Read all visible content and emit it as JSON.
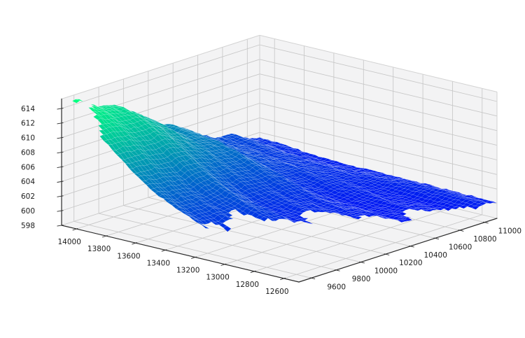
{
  "figure": {
    "background": "#ffffff",
    "description": "3D surface plot of terrain-like data, no title, no legend"
  },
  "axes": {
    "x": {
      "ticks": [
        14000,
        13800,
        13600,
        13400,
        13200,
        13000,
        12800,
        12600
      ],
      "range": [
        14100,
        12500
      ]
    },
    "y": {
      "ticks": [
        9600,
        9800,
        10000,
        10200,
        10400,
        10600,
        10800,
        11000
      ],
      "range": [
        9500,
        11100
      ]
    },
    "z": {
      "ticks": [
        598,
        600,
        602,
        604,
        606,
        608,
        610,
        612,
        614
      ],
      "range": [
        598,
        615.3
      ]
    }
  },
  "colors": {
    "pane": "#f3f3f4",
    "gridline": "#c7c7c7",
    "spine": "#2b2b2b",
    "label": "#1c1c1c",
    "mesh_edge": "rgba(255,255,255,0.30)"
  },
  "chart_data": {
    "type": "3d-surface",
    "title": "",
    "xlabel": "",
    "ylabel": "",
    "zlabel": "",
    "grid": true,
    "legend": false,
    "colormap": {
      "name": "winter",
      "low_color": "#0000ff",
      "high_color": "#00ff80",
      "vmin": 598.6,
      "vmax": 614.4
    },
    "x_range": [
      14100,
      12500
    ],
    "y_range": [
      9500,
      11100
    ],
    "z_range": [
      598,
      615.3
    ],
    "z_grid_approx_note": "Approx surface heights z(x,y); rows = x from 14100 to 12500, cols = y from 9500 to 11100 (5x5 sample); null = missing data (masked region, visible floor)",
    "z_grid_approx": [
      [
        614.2,
        612.1,
        607.8,
        603.8,
        601.3
      ],
      [
        609.0,
        608.0,
        605.3,
        602.6,
        600.9
      ],
      [
        603.1,
        603.1,
        602.2,
        601.1,
        600.5
      ],
      [
        null,
        null,
        600.5,
        600.2,
        600.5
      ],
      [
        null,
        null,
        null,
        null,
        600.1
      ]
    ],
    "surface_model": {
      "grid_n": 57,
      "base": 599.75,
      "amp": 14.45,
      "v_shift": 0.02,
      "v_scale": 0.68,
      "v_exp": 2.0,
      "wu0": 0.4,
      "wu_slope": 0.1,
      "u_exp": 1.7,
      "ripple_damp": {
        "c": 0.35,
        "a": 0.65,
        "r0": 0.55,
        "w": 0.35
      },
      "ripples": [
        [
          0.34,
          2.1,
          23,
          0.7
        ],
        [
          0.27,
          11.5,
          -7,
          2.0
        ],
        [
          0.2,
          -3,
          41,
          4.0
        ],
        [
          0.12,
          13,
          97,
          0.0
        ]
      ],
      "jitter": 0.11,
      "tail_bump": {
        "u": 0.8,
        "v": 0.94,
        "amp": 1.05,
        "wu": 0.28,
        "wv": 0.07
      },
      "peak_spike": {
        "amp": 0.45,
        "u_w": 0.05,
        "v_c": 0.072,
        "v_w": 0.03
      },
      "mask": {
        "u_base": 0.55,
        "u_slope": 0.5,
        "u_pow": 1.15,
        "edge_wiggles": [
          [
            0.045,
            21,
            1.0
          ],
          [
            0.028,
            47,
            2.2
          ],
          [
            0.02,
            11,
            0.0
          ],
          [
            0.015,
            83,
            0.5
          ]
        ],
        "front_v0": 0.15,
        "front_slope": 1.1,
        "spike_window": {
          "u_max": 0.022,
          "v_min": 0.04,
          "v_max": 0.102
        }
      }
    }
  }
}
